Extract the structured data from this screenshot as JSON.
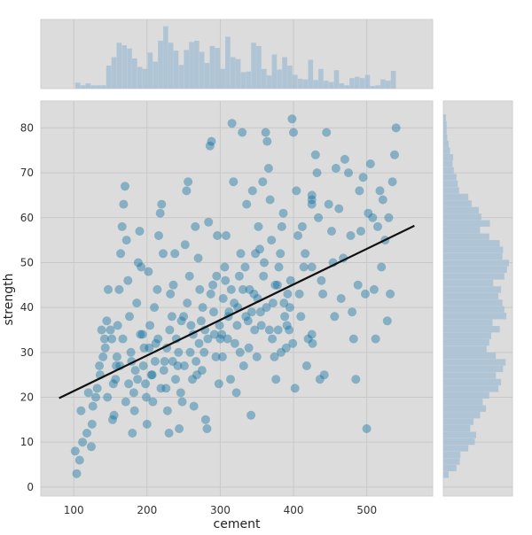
{
  "chart_data": {
    "type": "scatter",
    "title": "",
    "xlabel": "cement",
    "ylabel": "strength",
    "xlim": [
      55,
      590
    ],
    "ylim": [
      -2,
      86
    ],
    "x_ticks": [
      100,
      200,
      300,
      400,
      500
    ],
    "y_ticks": [
      0,
      10,
      20,
      30,
      40,
      50,
      60,
      70,
      80
    ],
    "grid": true,
    "point_color": "#0e6fa3",
    "hist_color": "#a7bfd3",
    "fit_color": "#111111",
    "background": "#dcdcdc",
    "regression_line": {
      "x": [
        80,
        565
      ],
      "y": [
        19.8,
        58.2
      ]
    },
    "points": [
      [
        102,
        8
      ],
      [
        104,
        3
      ],
      [
        108,
        6
      ],
      [
        112,
        10
      ],
      [
        110,
        17
      ],
      [
        118,
        12
      ],
      [
        124,
        9
      ],
      [
        126,
        18
      ],
      [
        132,
        22
      ],
      [
        136,
        25
      ],
      [
        140,
        29
      ],
      [
        142,
        33
      ],
      [
        145,
        37
      ],
      [
        147,
        44
      ],
      [
        152,
        33
      ],
      [
        153,
        15
      ],
      [
        155,
        16
      ],
      [
        157,
        24
      ],
      [
        158,
        27
      ],
      [
        160,
        36
      ],
      [
        162,
        44
      ],
      [
        164,
        52
      ],
      [
        166,
        58
      ],
      [
        168,
        63
      ],
      [
        170,
        67
      ],
      [
        172,
        55
      ],
      [
        174,
        46
      ],
      [
        176,
        38
      ],
      [
        178,
        30
      ],
      [
        180,
        12
      ],
      [
        182,
        21
      ],
      [
        184,
        26
      ],
      [
        186,
        41
      ],
      [
        188,
        50
      ],
      [
        190,
        57
      ],
      [
        192,
        49
      ],
      [
        194,
        34
      ],
      [
        196,
        31
      ],
      [
        198,
        23
      ],
      [
        200,
        14
      ],
      [
        202,
        48
      ],
      [
        204,
        36
      ],
      [
        206,
        25
      ],
      [
        208,
        19
      ],
      [
        210,
        40
      ],
      [
        212,
        32
      ],
      [
        214,
        44
      ],
      [
        216,
        56
      ],
      [
        218,
        61
      ],
      [
        220,
        63
      ],
      [
        222,
        52
      ],
      [
        224,
        28
      ],
      [
        226,
        22
      ],
      [
        228,
        17
      ],
      [
        230,
        12
      ],
      [
        232,
        43
      ],
      [
        234,
        38
      ],
      [
        236,
        45
      ],
      [
        238,
        52
      ],
      [
        240,
        33
      ],
      [
        242,
        27
      ],
      [
        244,
        13
      ],
      [
        246,
        21
      ],
      [
        248,
        19
      ],
      [
        250,
        38
      ],
      [
        252,
        54
      ],
      [
        254,
        66
      ],
      [
        256,
        68
      ],
      [
        258,
        47
      ],
      [
        260,
        36
      ],
      [
        262,
        24
      ],
      [
        264,
        18
      ],
      [
        266,
        58
      ],
      [
        268,
        25
      ],
      [
        270,
        51
      ],
      [
        272,
        44
      ],
      [
        274,
        37
      ],
      [
        276,
        40
      ],
      [
        278,
        30
      ],
      [
        280,
        15
      ],
      [
        282,
        13
      ],
      [
        284,
        59
      ],
      [
        286,
        76
      ],
      [
        288,
        77
      ],
      [
        290,
        45
      ],
      [
        292,
        34
      ],
      [
        294,
        29
      ],
      [
        296,
        56
      ],
      [
        298,
        23
      ],
      [
        300,
        33
      ],
      [
        302,
        34
      ],
      [
        304,
        42
      ],
      [
        306,
        49
      ],
      [
        308,
        56
      ],
      [
        310,
        33
      ],
      [
        312,
        39
      ],
      [
        314,
        24
      ],
      [
        316,
        81
      ],
      [
        318,
        68
      ],
      [
        320,
        32
      ],
      [
        322,
        21
      ],
      [
        324,
        40
      ],
      [
        326,
        47
      ],
      [
        328,
        52
      ],
      [
        330,
        79
      ],
      [
        332,
        27
      ],
      [
        334,
        49
      ],
      [
        336,
        63
      ],
      [
        338,
        37
      ],
      [
        340,
        44
      ],
      [
        342,
        16
      ],
      [
        344,
        66
      ],
      [
        346,
        43
      ],
      [
        348,
        52
      ],
      [
        350,
        29
      ],
      [
        352,
        58
      ],
      [
        354,
        53
      ],
      [
        356,
        36
      ],
      [
        358,
        68
      ],
      [
        360,
        50
      ],
      [
        362,
        79
      ],
      [
        364,
        77
      ],
      [
        366,
        71
      ],
      [
        368,
        64
      ],
      [
        370,
        55
      ],
      [
        372,
        41
      ],
      [
        374,
        29
      ],
      [
        376,
        24
      ],
      [
        378,
        45
      ],
      [
        380,
        49
      ],
      [
        382,
        52
      ],
      [
        384,
        58
      ],
      [
        386,
        61
      ],
      [
        388,
        38
      ],
      [
        390,
        31
      ],
      [
        392,
        43
      ],
      [
        394,
        35
      ],
      [
        396,
        46
      ],
      [
        398,
        82
      ],
      [
        400,
        79
      ],
      [
        402,
        22
      ],
      [
        404,
        66
      ],
      [
        406,
        56
      ],
      [
        408,
        43
      ],
      [
        410,
        38
      ],
      [
        412,
        58
      ],
      [
        414,
        49
      ],
      [
        416,
        52
      ],
      [
        418,
        27
      ],
      [
        420,
        33
      ],
      [
        425,
        65
      ],
      [
        425,
        64
      ],
      [
        425,
        63
      ],
      [
        425,
        49
      ],
      [
        425,
        34
      ],
      [
        426,
        32
      ],
      [
        430,
        74
      ],
      [
        432,
        70
      ],
      [
        434,
        60
      ],
      [
        436,
        24
      ],
      [
        438,
        46
      ],
      [
        440,
        43
      ],
      [
        442,
        25
      ],
      [
        445,
        79
      ],
      [
        448,
        63
      ],
      [
        452,
        57
      ],
      [
        454,
        50
      ],
      [
        456,
        38
      ],
      [
        458,
        71
      ],
      [
        462,
        62
      ],
      [
        465,
        42
      ],
      [
        468,
        51
      ],
      [
        470,
        73
      ],
      [
        475,
        70
      ],
      [
        478,
        56
      ],
      [
        480,
        39
      ],
      [
        482,
        33
      ],
      [
        485,
        24
      ],
      [
        488,
        45
      ],
      [
        490,
        66
      ],
      [
        492,
        57
      ],
      [
        495,
        69
      ],
      [
        498,
        43
      ],
      [
        500,
        13
      ],
      [
        502,
        61
      ],
      [
        505,
        72
      ],
      [
        508,
        60
      ],
      [
        510,
        44
      ],
      [
        512,
        33
      ],
      [
        515,
        58
      ],
      [
        518,
        66
      ],
      [
        520,
        49
      ],
      [
        522,
        64
      ],
      [
        525,
        55
      ],
      [
        528,
        37
      ],
      [
        530,
        60
      ],
      [
        532,
        43
      ],
      [
        535,
        68
      ],
      [
        538,
        74
      ],
      [
        540,
        80
      ],
      [
        120,
        21
      ],
      [
        125,
        14
      ],
      [
        130,
        20
      ],
      [
        135,
        27
      ],
      [
        138,
        35
      ],
      [
        143,
        31
      ],
      [
        146,
        20
      ],
      [
        150,
        35
      ],
      [
        154,
        23
      ],
      [
        159,
        29
      ],
      [
        163,
        27
      ],
      [
        167,
        33
      ],
      [
        171,
        19
      ],
      [
        175,
        23
      ],
      [
        179,
        28
      ],
      [
        183,
        17
      ],
      [
        187,
        24
      ],
      [
        191,
        34
      ],
      [
        195,
        27
      ],
      [
        199,
        20
      ],
      [
        203,
        31
      ],
      [
        207,
        25
      ],
      [
        211,
        28
      ],
      [
        215,
        33
      ],
      [
        219,
        22
      ],
      [
        223,
        26
      ],
      [
        227,
        31
      ],
      [
        231,
        35
      ],
      [
        235,
        28
      ],
      [
        239,
        24
      ],
      [
        243,
        30
      ],
      [
        247,
        37
      ],
      [
        251,
        27
      ],
      [
        255,
        41
      ],
      [
        259,
        30
      ],
      [
        263,
        34
      ],
      [
        267,
        28
      ],
      [
        271,
        32
      ],
      [
        275,
        26
      ],
      [
        279,
        35
      ],
      [
        283,
        33
      ],
      [
        287,
        43
      ],
      [
        291,
        39
      ],
      [
        295,
        47
      ],
      [
        299,
        36
      ],
      [
        303,
        29
      ],
      [
        307,
        46
      ],
      [
        311,
        38
      ],
      [
        315,
        44
      ],
      [
        319,
        41
      ],
      [
        323,
        36
      ],
      [
        327,
        30
      ],
      [
        331,
        44
      ],
      [
        335,
        38
      ],
      [
        339,
        31
      ],
      [
        343,
        39
      ],
      [
        347,
        35
      ],
      [
        351,
        42
      ],
      [
        355,
        39
      ],
      [
        359,
        47
      ],
      [
        363,
        40
      ],
      [
        367,
        35
      ],
      [
        371,
        33
      ],
      [
        375,
        45
      ],
      [
        379,
        35
      ],
      [
        383,
        30
      ],
      [
        387,
        41
      ],
      [
        391,
        36
      ],
      [
        395,
        40
      ],
      [
        399,
        32
      ]
    ],
    "x_hist_heights": [
      0.09,
      0.05,
      0.08,
      0.05,
      0.05,
      0.05,
      0.35,
      0.48,
      0.7,
      0.66,
      0.61,
      0.46,
      0.33,
      0.3,
      0.55,
      0.41,
      0.73,
      0.95,
      0.7,
      0.58,
      0.36,
      0.59,
      0.71,
      0.73,
      0.56,
      0.39,
      0.65,
      0.62,
      0.3,
      0.79,
      0.48,
      0.45,
      0.25,
      0.26,
      0.7,
      0.65,
      0.3,
      0.2,
      0.52,
      0.29,
      0.48,
      0.35,
      0.21,
      0.15,
      0.14,
      0.44,
      0.13,
      0.3,
      0.12,
      0.1,
      0.28,
      0.08,
      0.05,
      0.16,
      0.18,
      0.16,
      0.21,
      0.04,
      0.05,
      0.14,
      0.12,
      0.27
    ],
    "y_hist_lengths": [
      0.08,
      0.2,
      0.25,
      0.26,
      0.38,
      0.48,
      0.5,
      0.41,
      0.46,
      0.56,
      0.65,
      0.6,
      0.7,
      0.84,
      0.88,
      0.8,
      0.91,
      0.95,
      0.8,
      0.66,
      0.7,
      0.73,
      0.86,
      0.75,
      0.96,
      0.93,
      0.9,
      0.84,
      0.88,
      0.76,
      0.93,
      0.97,
      1.0,
      0.9,
      0.91,
      0.86,
      0.7,
      0.56,
      0.71,
      0.58,
      0.54,
      0.43,
      0.38,
      0.24,
      0.22,
      0.2,
      0.16,
      0.14,
      0.15,
      0.1,
      0.08,
      0.06,
      0.05,
      0.05,
      0.04
    ]
  }
}
